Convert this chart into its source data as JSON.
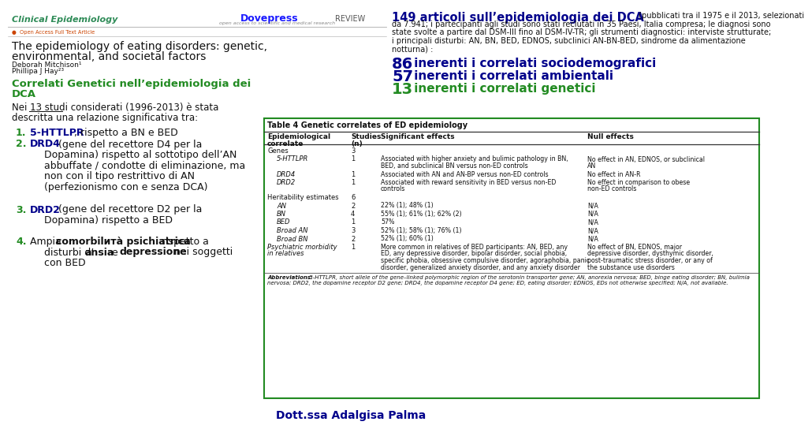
{
  "bg_color": "#ffffff",
  "header_left_text": "Clinical Epidemiology",
  "header_left_color": "#2e8b57",
  "header_center_text": "Dovepress",
  "header_center_sub": "open access to scientific and medical research",
  "review_text": "REVIEW",
  "open_access_text": "●  Open Access Full Text Article",
  "title_line1": "The epidemiology of eating disorders: genetic,",
  "title_line2": "environmental, and societal factors",
  "author1": "Deborah Mitchison¹",
  "author2": "Phillipa J Hay²³",
  "section_title_line1": "Correlati Genetici nell’epidemiologia dei",
  "section_title_line2": "DCA",
  "section_color": "#228B22",
  "intro_line1": "Nei 13 studi considerati (1996-2013) è stata",
  "intro_line2": "descritta una relazione significativa tra:",
  "item1_bold": "5-HTTLPR",
  "item1_rest": ", rispetto a BN e BED",
  "item2_bold": "DRD4",
  "item2_rest_lines": [
    " (gene del recettore D4 per la",
    "Dopamina) rispetto al sottotipo dell’AN",
    "abbuffate / condotte di eliminazione, ma",
    "non con il tipo restrittivo di AN",
    "(perfezionismo con e senza DCA)"
  ],
  "item3_bold": "DRD2",
  "item3_rest_lines": [
    " (gene del recettore D2 per la",
    "Dopamina) rispetto a BED"
  ],
  "item4_pre": "Ampia ",
  "item4_bold1": "comorbilитà psichiatrica",
  "item4_mid1": " rispetto a",
  "item4_line2_pre": "disturbi d’",
  "item4_bold2": "ansia",
  "item4_mid2": " e ",
  "item4_bold3": "depressione",
  "item4_end1": " nei soggetti",
  "item4_line3": "con BED",
  "top_right_bold": "149 articoli sull’epidemiologia dei DCA",
  "top_right_rest": " (pubblicati tra il 1975 e il 2013, selezionati",
  "top_right_lines": [
    "da 7.941; i partecipanti agli studi sono stati reclutati in 35 Paesi, Italia compresa; le diagnosi sono",
    "state svolte a partire dal DSM-III fino al DSM-IV-TR; gli strumenti diagnostici: interviste strutturate;",
    "i principali disturbi: AN, BN, BED, EDNOS, subclinici AN-BN-BED, sindrome da alimentazione",
    "notturna) :"
  ],
  "top_right_color": "#00008B",
  "stat1_num": "86",
  "stat1_text": " inerenti i correlati sociodemografici",
  "stat2_num": "57",
  "stat2_text": " inerenti i correlati ambientali",
  "stat3_num": "13",
  "stat3_text": " inerenti i correlati genetici",
  "stat_color_num": "#00008B",
  "stat_color_text": "#00008B",
  "stat3_color": "#228B22",
  "table_title": "Table 4 Genetic correlates of ED epidemiology",
  "table_border_color": "#228B22",
  "col_headers": [
    "Epidemiological\ncorrelate",
    "Studies\n(n)",
    "Significant effects",
    "Null effects"
  ],
  "table_rows": [
    {
      "cat": "Genes",
      "indent": false,
      "italic": false,
      "n": "3",
      "sig": "",
      "null": ""
    },
    {
      "cat": "5-HTTLPR",
      "indent": true,
      "italic": true,
      "n": "1",
      "sig": "Associated with higher anxiety and bulimic pathology in BN,\nBED, and subclinical BN versus non-ED controls",
      "null": "No effect in AN, EDNOS, or subclinical\nAN"
    },
    {
      "cat": "DRD4",
      "indent": true,
      "italic": true,
      "n": "1",
      "sig": "Associated with AN and AN-BP versus non-ED controls",
      "null": "No effect in AN-R"
    },
    {
      "cat": "DRD2",
      "indent": true,
      "italic": true,
      "n": "1",
      "sig": "Associated with reward sensitivity in BED versus non-ED\ncontrols",
      "null": "No effect in comparison to obese\nnon-ED controls"
    },
    {
      "cat": "Heritability estimates",
      "indent": false,
      "italic": false,
      "n": "6",
      "sig": "",
      "null": ""
    },
    {
      "cat": "AN",
      "indent": true,
      "italic": true,
      "n": "2",
      "sig": "22% (1); 48% (1)",
      "null": "N/A"
    },
    {
      "cat": "BN",
      "indent": true,
      "italic": true,
      "n": "4",
      "sig": "55% (1); 61% (1); 62% (2)",
      "null": "N/A"
    },
    {
      "cat": "BED",
      "indent": true,
      "italic": true,
      "n": "1",
      "sig": "57%",
      "null": "N/A"
    },
    {
      "cat": "Broad AN",
      "indent": true,
      "italic": true,
      "n": "3",
      "sig": "52% (1); 58% (1); 76% (1)",
      "null": "N/A"
    },
    {
      "cat": "Broad BN",
      "indent": true,
      "italic": true,
      "n": "2",
      "sig": "52% (1); 60% (1)",
      "null": "N/A"
    },
    {
      "cat": "Psychiatric morbidity\nin relatives",
      "indent": false,
      "italic": true,
      "n": "1",
      "sig": "More common in relatives of BED participants: AN, BED, any\nED, any depressive disorder, bipolar disorder, social phobia,\nspecific phobia, obsessive compulsive disorder, agoraphobia, panic\ndisorder, generalized anxiety disorder, and any anxiety disorder",
      "null": "No effect of BN, EDNOS, major\ndepressive disorder, dysthymic disorder,\npost-traumatic stress disorder, or any of\nthe substance use disorders"
    }
  ],
  "table_abbrev_bold": "Abbreviations:",
  "table_abbrev_rest": " 5-HTTLPR, short allele of the gene–linked polymorphic region of the serotonin transporter gene; AN, anorexia nervosa; BED, binge eating disorder; BN, bulimia\nnervosa; DRD2, the dopamine receptor D2 gene; DRD4, the dopamine receptor D4 gene; ED, eating disorder; EDNOS, EDs not otherwise specified; N/A, not available.",
  "footer_text": "Dott.ssa Adalgisa Palma",
  "footer_color": "#00008B",
  "divider_color": "#aaaaaa",
  "num_green": "#228B22",
  "text_dark": "#111111",
  "blue_dark": "#00008B"
}
